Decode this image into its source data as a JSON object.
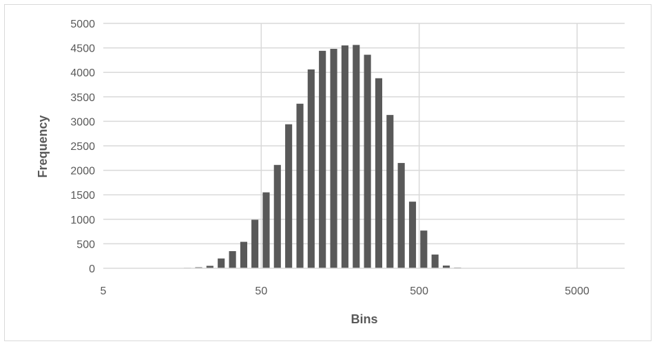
{
  "chart_data": {
    "type": "bar",
    "title": "",
    "xlabel": "Bins",
    "ylabel": "Frequency",
    "xscale": "log10",
    "xlim": [
      5,
      10000
    ],
    "ylim": [
      0,
      5000
    ],
    "x_ticks": [
      5,
      50,
      500,
      5000
    ],
    "y_ticks": [
      0,
      500,
      1000,
      1500,
      2000,
      2500,
      3000,
      3500,
      4000,
      4500,
      5000
    ],
    "grid": true,
    "legend": "none",
    "bar_color": "#595959",
    "gridline_color": "#d9d9d9",
    "x": [
      5.0,
      5.9,
      6.9,
      8.2,
      9.6,
      11.3,
      13.3,
      15.7,
      18.5,
      21.8,
      25.7,
      30.3,
      35.7,
      42.0,
      49.5,
      58.3,
      68.7,
      81.0,
      95.4,
      112.4,
      132.5,
      156.1,
      184.0,
      216.8,
      255.5,
      301.1,
      354.8,
      418.1,
      492.7,
      580.6,
      684.2,
      806.3,
      950.2,
      1120,
      1320,
      1555,
      1832,
      2159,
      2545,
      2999,
      3534,
      4164,
      4907,
      5783,
      6815,
      8031
    ],
    "values": [
      0,
      0,
      0,
      0,
      0,
      0,
      5,
      10,
      20,
      50,
      200,
      350,
      540,
      990,
      1550,
      2110,
      2940,
      3360,
      4060,
      4440,
      4480,
      4550,
      4560,
      4360,
      3880,
      3130,
      2150,
      1360,
      770,
      280,
      55,
      15,
      5,
      0,
      0,
      0,
      0,
      0,
      0,
      0,
      0,
      0,
      0,
      0,
      0,
      0
    ]
  }
}
